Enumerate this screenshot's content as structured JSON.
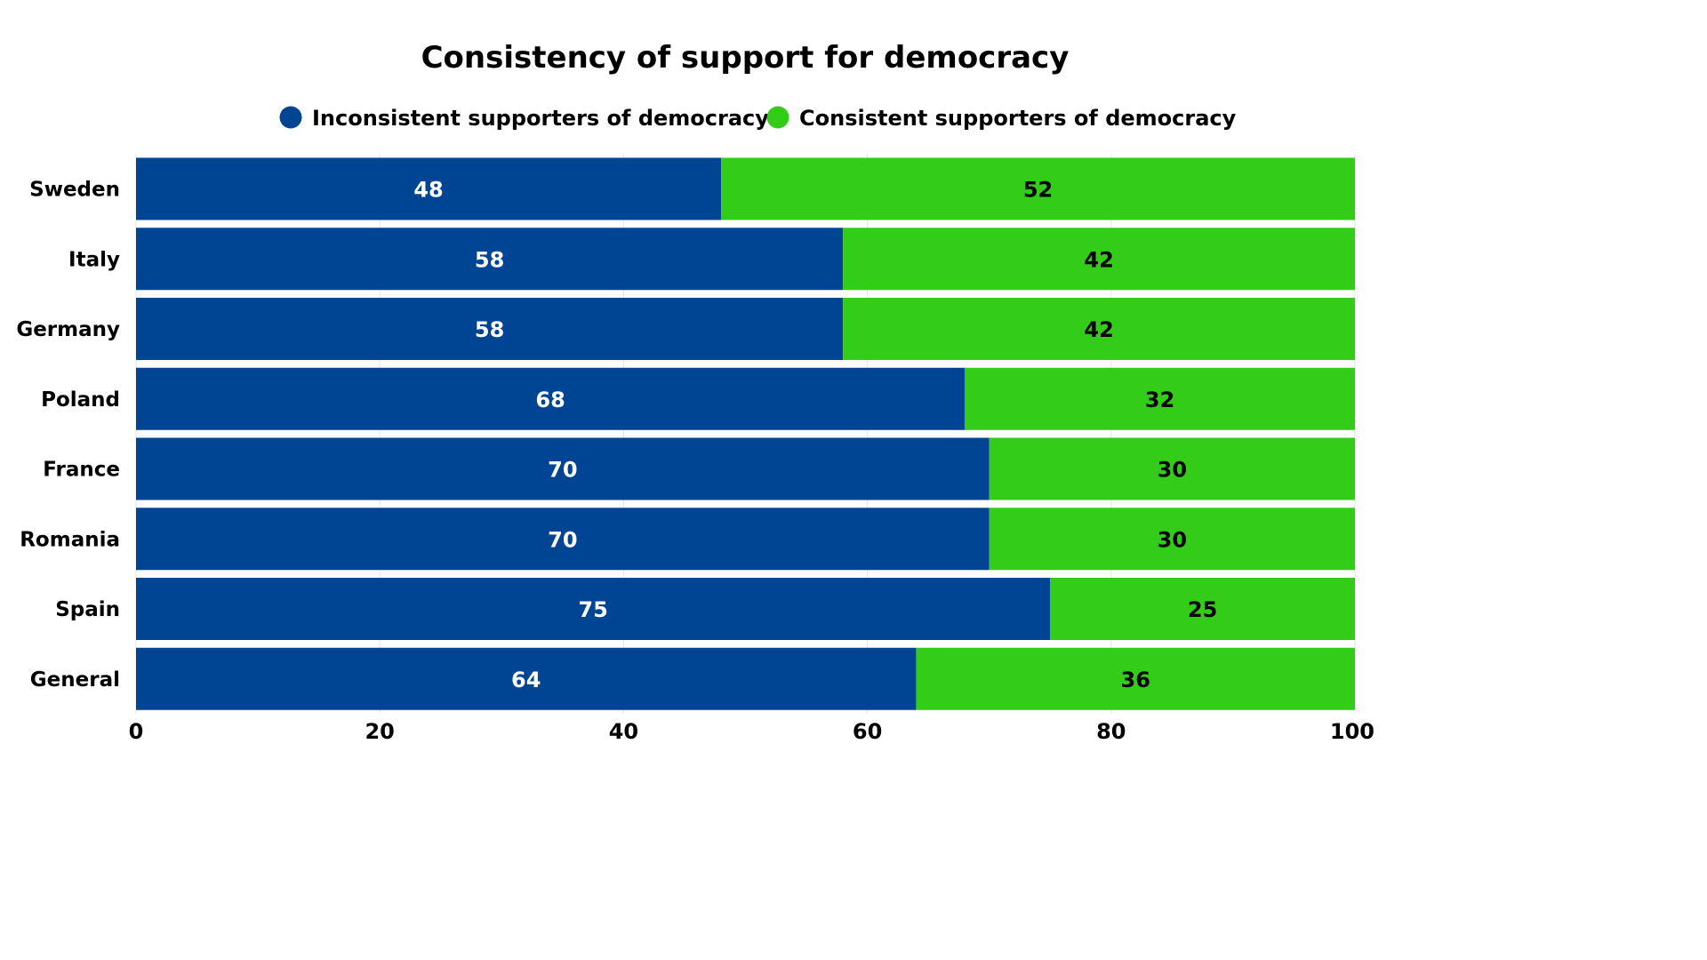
{
  "chart_data": {
    "type": "bar",
    "orientation": "horizontal",
    "stacked": true,
    "title": "Consistency of support for democracy",
    "categories": [
      "Sweden",
      "Italy",
      "Germany",
      "Poland",
      "France",
      "Romania",
      "Spain",
      "General"
    ],
    "series": [
      {
        "name": "Inconsistent supporters of democracy",
        "color": "#004494",
        "values": [
          48,
          58,
          58,
          68,
          70,
          70,
          75,
          64
        ]
      },
      {
        "name": "Consistent supporters of democracy",
        "color": "#33CC19",
        "values": [
          52,
          42,
          42,
          32,
          30,
          30,
          25,
          36
        ]
      }
    ],
    "xlim": [
      0,
      100
    ],
    "xticks": [
      0,
      20,
      40,
      60,
      80,
      100
    ],
    "xlabel": "",
    "ylabel": "",
    "grid": true,
    "legend_position": "top"
  }
}
